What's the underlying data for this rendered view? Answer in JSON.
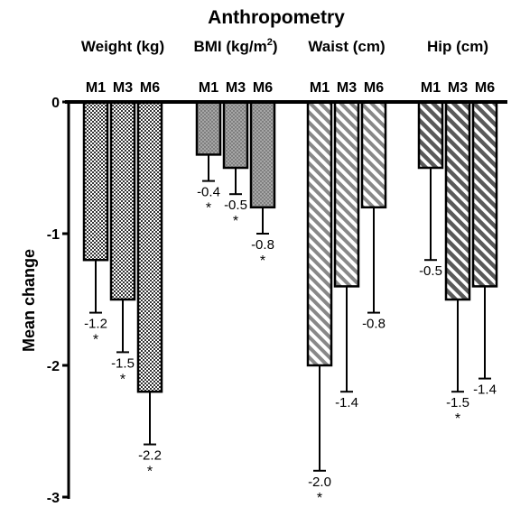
{
  "chart_data": {
    "type": "bar",
    "title": "Anthropometry",
    "ylabel": "Mean change",
    "ylim": [
      -3,
      0
    ],
    "yticks": [
      "0",
      "-1",
      "-2",
      "-3"
    ],
    "grid": false,
    "legend": "none",
    "categories": [
      "M1",
      "M3",
      "M6"
    ],
    "groups": [
      {
        "name": "Weight (kg)",
        "fill": "checker",
        "values": [
          -1.2,
          -1.5,
          -2.2
        ],
        "errors": [
          0.4,
          0.4,
          0.4
        ],
        "labels": [
          "-1.2",
          "-1.5",
          "-2.2"
        ],
        "significant": [
          true,
          true,
          true
        ]
      },
      {
        "name": "BMI (kg/m",
        "name_sup": "2",
        "name_suffix": ")",
        "fill": "dots",
        "values": [
          -0.4,
          -0.5,
          -0.8
        ],
        "errors": [
          0.2,
          0.2,
          0.2
        ],
        "labels": [
          "-0.4",
          "-0.5",
          "-0.8"
        ],
        "significant": [
          true,
          true,
          true
        ]
      },
      {
        "name": "Waist (cm)",
        "fill": "stripes-light",
        "values": [
          -2.0,
          -1.4,
          -0.8
        ],
        "errors": [
          0.8,
          0.8,
          0.8
        ],
        "labels": [
          "-2.0",
          "-1.4",
          "-0.8"
        ],
        "significant": [
          true,
          false,
          false
        ]
      },
      {
        "name": "Hip (cm)",
        "fill": "stripes-dark",
        "values": [
          -0.5,
          -1.5,
          -1.4
        ],
        "errors": [
          0.7,
          0.7,
          0.7
        ],
        "labels": [
          "-0.5",
          "-1.5",
          "-1.4"
        ],
        "significant": [
          false,
          true,
          false
        ]
      }
    ],
    "significance_marker": "*",
    "colors": {
      "ink": "#000000",
      "bar_base": "#d9d9d9",
      "stripe_dark_base": "#8c8c8c"
    }
  }
}
